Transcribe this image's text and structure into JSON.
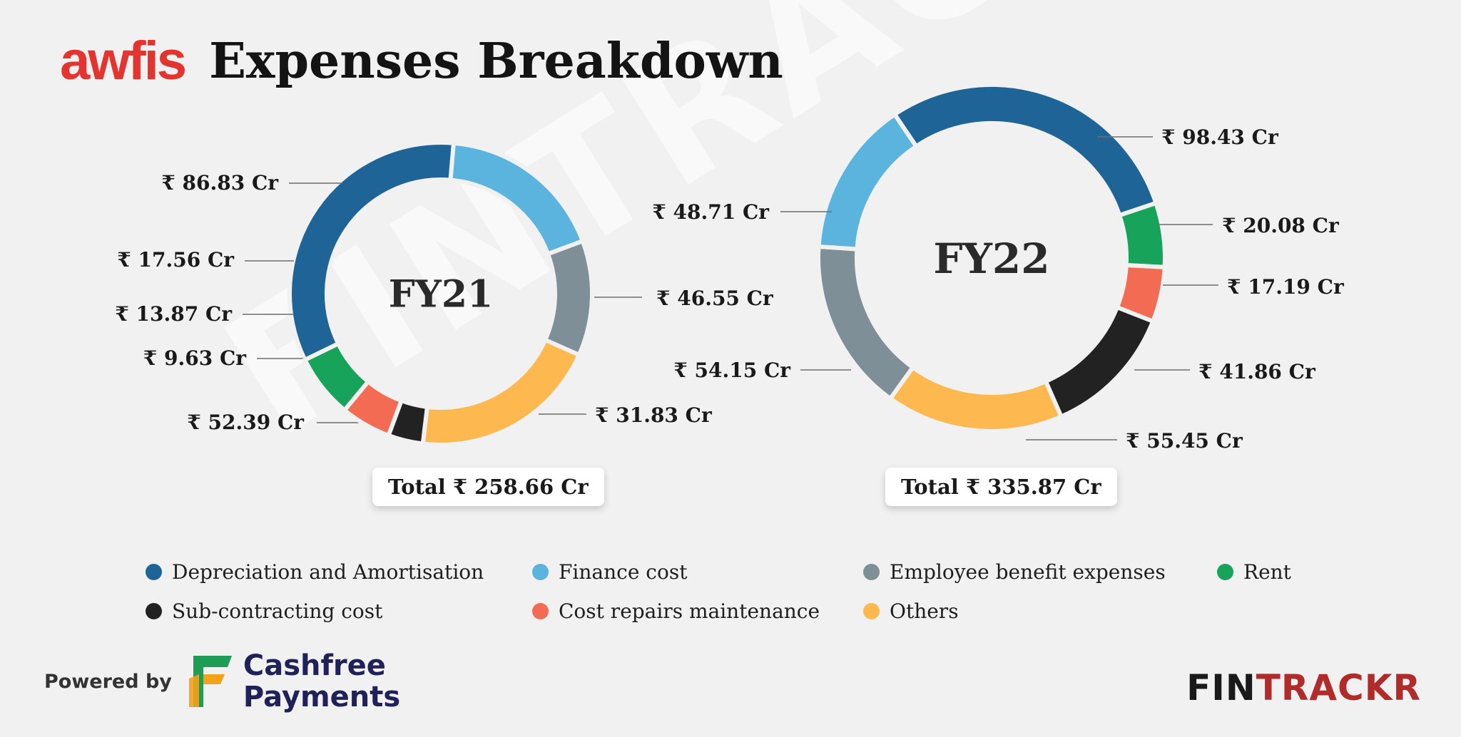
{
  "header": {
    "logo_text": "awfis",
    "title": "Expenses Breakdown"
  },
  "watermark": "FINTRACKR",
  "colors": {
    "depreciation": "#1e6496",
    "finance": "#5ab4de",
    "employee": "#7f8f97",
    "rent": "#17a359",
    "subcontracting": "#222222",
    "repairs": "#f36b52",
    "others": "#fdb94f",
    "brand_red": "#e3342f"
  },
  "chart_data": [
    {
      "type": "pie",
      "title": "FY21",
      "total_label": "Total ₹ 258.66 Cr",
      "total": 258.66,
      "unit": "₹ Cr",
      "slices": [
        {
          "name": "Depreciation and Amortisation",
          "value": 86.83,
          "label": "₹ 86.83 Cr",
          "color": "#1e6496"
        },
        {
          "name": "Finance cost",
          "value": 46.55,
          "label": "₹ 46.55 Cr",
          "color": "#5ab4de"
        },
        {
          "name": "Employee benefit expenses",
          "value": 31.83,
          "label": "₹ 31.83 Cr",
          "color": "#7f8f97"
        },
        {
          "name": "Others",
          "value": 52.39,
          "label": "₹ 52.39 Cr",
          "color": "#fdb94f"
        },
        {
          "name": "Sub-contracting cost",
          "value": 9.63,
          "label": "₹ 9.63 Cr",
          "color": "#222222"
        },
        {
          "name": "Cost repairs maintenance",
          "value": 13.87,
          "label": "₹ 13.87 Cr",
          "color": "#f36b52"
        },
        {
          "name": "Rent",
          "value": 17.56,
          "label": "₹ 17.56 Cr",
          "color": "#17a359"
        }
      ]
    },
    {
      "type": "pie",
      "title": "FY22",
      "total_label": "Total ₹ 335.87 Cr",
      "total": 335.87,
      "unit": "₹ Cr",
      "slices": [
        {
          "name": "Depreciation and Amortisation",
          "value": 98.43,
          "label": "₹ 98.43 Cr",
          "color": "#1e6496"
        },
        {
          "name": "Rent",
          "value": 20.08,
          "label": "₹ 20.08 Cr",
          "color": "#17a359"
        },
        {
          "name": "Cost repairs maintenance",
          "value": 17.19,
          "label": "₹ 17.19 Cr",
          "color": "#f36b52"
        },
        {
          "name": "Sub-contracting cost",
          "value": 41.86,
          "label": "₹ 41.86 Cr",
          "color": "#222222"
        },
        {
          "name": "Others",
          "value": 55.45,
          "label": "₹ 55.45 Cr",
          "color": "#fdb94f"
        },
        {
          "name": "Employee benefit expenses",
          "value": 54.15,
          "label": "₹ 54.15 Cr",
          "color": "#7f8f97"
        },
        {
          "name": "Finance cost",
          "value": 48.71,
          "label": "₹ 48.71 Cr",
          "color": "#5ab4de"
        }
      ]
    }
  ],
  "legend": {
    "rows": [
      [
        {
          "label": "Depreciation and Amortisation",
          "color": "#1e6496"
        },
        {
          "label": "Finance cost",
          "color": "#5ab4de"
        },
        {
          "label": "Employee benefit expenses",
          "color": "#7f8f97"
        },
        {
          "label": "Rent",
          "color": "#17a359"
        }
      ],
      [
        {
          "label": "Sub-contracting cost",
          "color": "#222222"
        },
        {
          "label": "Cost repairs maintenance",
          "color": "#f36b52"
        },
        {
          "label": "Others",
          "color": "#fdb94f"
        }
      ]
    ]
  },
  "footer": {
    "powered_by": "Powered by",
    "partner_line1": "Cashfree",
    "partner_line2": "Payments",
    "brand_part1": "FIN",
    "brand_part2": "TRACKR"
  }
}
